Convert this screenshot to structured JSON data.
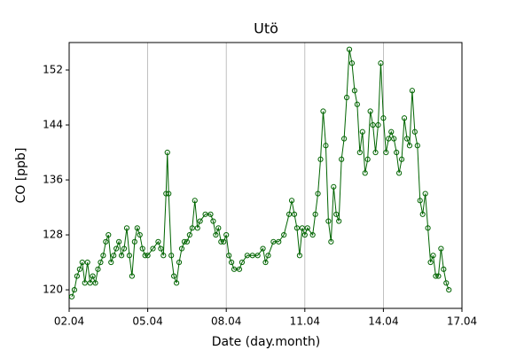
{
  "chart_data": {
    "type": "line",
    "title": "Utö",
    "xlabel": "Date (day.month)",
    "ylabel": "CO [ppb]",
    "color": "#006400",
    "marker": "open-circle",
    "grid": "x",
    "x": [
      2.1,
      2.2,
      2.3,
      2.4,
      2.5,
      2.6,
      2.7,
      2.8,
      2.9,
      3.0,
      3.1,
      3.2,
      3.3,
      3.4,
      3.5,
      3.6,
      3.7,
      3.8,
      3.9,
      4.0,
      4.1,
      4.2,
      4.3,
      4.4,
      4.5,
      4.6,
      4.7,
      4.8,
      4.9,
      5.0,
      5.2,
      5.4,
      5.5,
      5.6,
      5.7,
      5.75,
      5.8,
      5.9,
      6.0,
      6.1,
      6.2,
      6.3,
      6.4,
      6.5,
      6.6,
      6.7,
      6.8,
      6.9,
      7.0,
      7.2,
      7.4,
      7.5,
      7.6,
      7.7,
      7.8,
      7.9,
      8.0,
      8.1,
      8.2,
      8.3,
      8.5,
      8.6,
      8.8,
      9.0,
      9.2,
      9.4,
      9.5,
      9.6,
      9.8,
      10.0,
      10.2,
      10.4,
      10.5,
      10.6,
      10.7,
      10.8,
      10.9,
      11.0,
      11.1,
      11.3,
      11.4,
      11.5,
      11.6,
      11.7,
      11.8,
      11.9,
      12.0,
      12.1,
      12.2,
      12.3,
      12.4,
      12.5,
      12.6,
      12.7,
      12.8,
      12.9,
      13.0,
      13.1,
      13.2,
      13.3,
      13.4,
      13.5,
      13.6,
      13.7,
      13.8,
      13.9,
      14.0,
      14.1,
      14.2,
      14.3,
      14.4,
      14.5,
      14.6,
      14.7,
      14.8,
      14.9,
      15.0,
      15.1,
      15.2,
      15.3,
      15.4,
      15.5,
      15.6,
      15.7,
      15.8,
      15.9,
      16.0,
      16.1,
      16.2,
      16.3,
      16.4,
      16.5
    ],
    "values": [
      119,
      120,
      122,
      123,
      124,
      121,
      124,
      121,
      122,
      121,
      123,
      124,
      125,
      127,
      128,
      124,
      125,
      126,
      127,
      125,
      126,
      129,
      125,
      122,
      127,
      129,
      128,
      126,
      125,
      125,
      126,
      127,
      126,
      125,
      134,
      140,
      134,
      125,
      122,
      121,
      124,
      126,
      127,
      127,
      128,
      129,
      133,
      129,
      130,
      131,
      131,
      130,
      128,
      129,
      127,
      127,
      128,
      125,
      124,
      123,
      123,
      124,
      125,
      125,
      125,
      126,
      124,
      125,
      127,
      127,
      128,
      131,
      133,
      131,
      129,
      125,
      129,
      128,
      129,
      128,
      131,
      134,
      139,
      146,
      141,
      130,
      127,
      135,
      131,
      130,
      139,
      142,
      148,
      155,
      153,
      149,
      147,
      140,
      143,
      137,
      139,
      146,
      144,
      140,
      144,
      153,
      145,
      140,
      142,
      143,
      142,
      140,
      137,
      139,
      145,
      142,
      141,
      149,
      143,
      141,
      133,
      131,
      134,
      129,
      124,
      125,
      122,
      122,
      126,
      123,
      121,
      120
    ],
    "xlim": [
      2,
      17
    ],
    "xticks": [
      {
        "value": 2,
        "label": "02.04"
      },
      {
        "value": 5,
        "label": "05.04"
      },
      {
        "value": 8,
        "label": "08.04"
      },
      {
        "value": 11,
        "label": "11.04"
      },
      {
        "value": 14,
        "label": "14.04"
      },
      {
        "value": 17,
        "label": "17.04"
      }
    ],
    "ylim": [
      117.3,
      156
    ],
    "yticks": [
      120,
      128,
      136,
      144,
      152
    ]
  }
}
